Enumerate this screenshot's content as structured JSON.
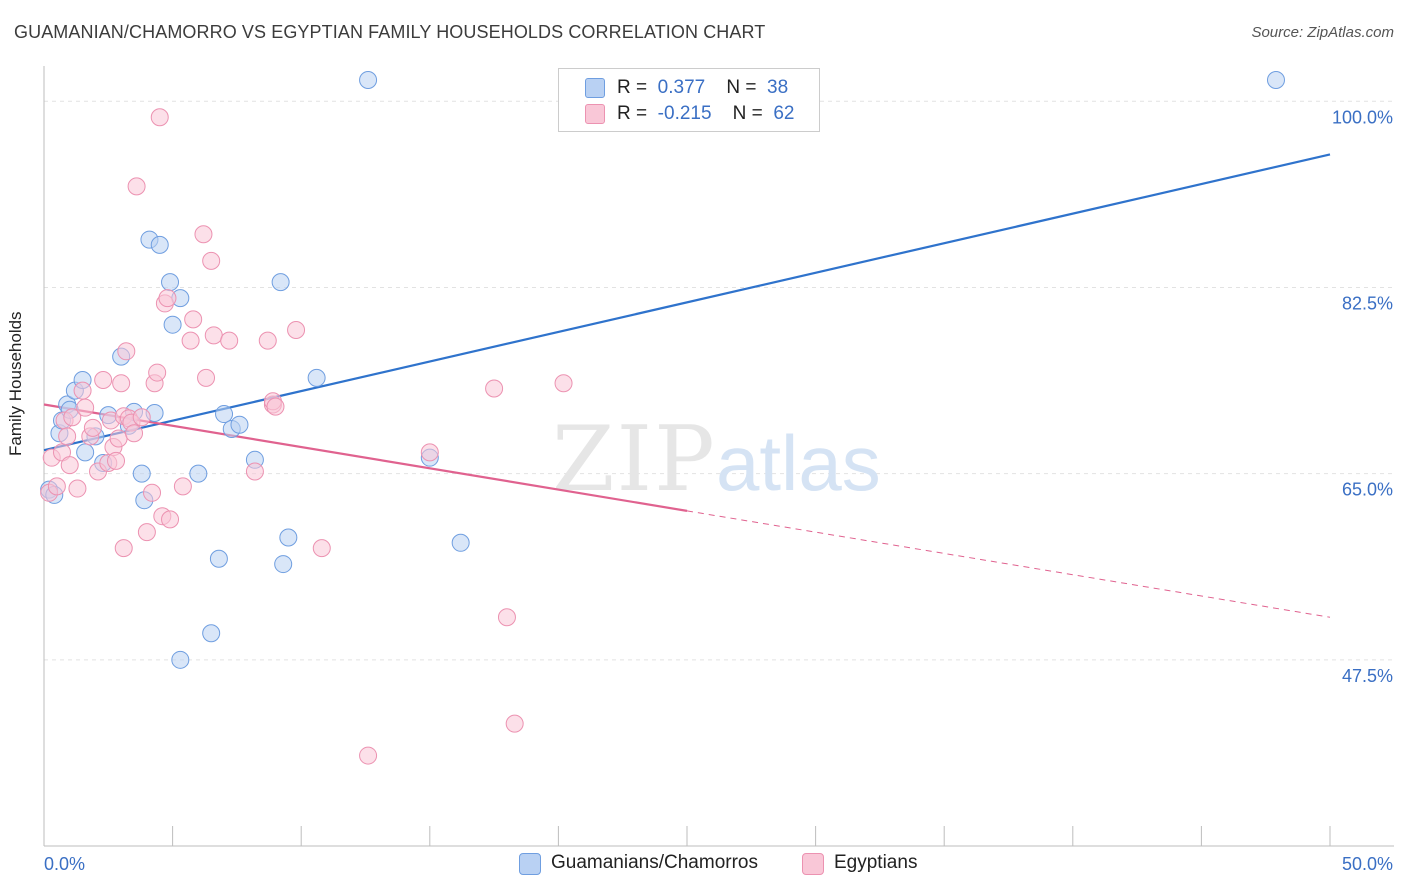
{
  "title": "GUAMANIAN/CHAMORRO VS EGYPTIAN FAMILY HOUSEHOLDS CORRELATION CHART",
  "source": "Source: ZipAtlas.com",
  "watermark": {
    "zip": "ZIP",
    "atlas": "atlas"
  },
  "legend": {
    "rows": [
      {
        "r_label": "R =",
        "r_value": "0.377",
        "n_label": "N =",
        "n_value": "38",
        "fill": "#b9d1f3",
        "stroke": "#6f9ee0"
      },
      {
        "r_label": "R =",
        "r_value": "-0.215",
        "n_label": "N =",
        "n_value": "62",
        "fill": "#f9c7d7",
        "stroke": "#ec92b1"
      }
    ]
  },
  "bottom_legend": [
    {
      "label": "Guamanians/Chamorros",
      "fill": "#b9d1f3",
      "stroke": "#6f9ee0"
    },
    {
      "label": "Egyptians",
      "fill": "#f9c7d7",
      "stroke": "#ec92b1"
    }
  ],
  "chart_data": {
    "type": "scatter",
    "title": "GUAMANIAN/CHAMORRO VS EGYPTIAN FAMILY HOUSEHOLDS CORRELATION CHART",
    "xlabel": "",
    "ylabel": "Family Households",
    "xlim": [
      0,
      50
    ],
    "ylim": [
      30,
      102
    ],
    "x_tick_labels": [
      {
        "value": 0,
        "label": "0.0%"
      },
      {
        "value": 50,
        "label": "50.0%"
      }
    ],
    "y_tick_labels": [
      {
        "value": 100,
        "label": "100.0%"
      },
      {
        "value": 82.5,
        "label": "82.5%"
      },
      {
        "value": 65,
        "label": "65.0%"
      },
      {
        "value": 47.5,
        "label": "47.5%"
      }
    ],
    "grid": true,
    "series": [
      {
        "name": "Guamanians/Chamorros",
        "color": "#6f9ee0",
        "fill": "#b9d1f3",
        "trend": {
          "x0": 0,
          "y0": 67.2,
          "x1": 50,
          "y1": 95.0,
          "color": "#2f73cc"
        },
        "points": [
          [
            0.2,
            63.5
          ],
          [
            0.4,
            63.0
          ],
          [
            0.6,
            68.8
          ],
          [
            0.7,
            70.0
          ],
          [
            0.9,
            71.5
          ],
          [
            1.0,
            71.0
          ],
          [
            1.2,
            72.8
          ],
          [
            1.5,
            73.8
          ],
          [
            1.6,
            67.0
          ],
          [
            2.0,
            68.5
          ],
          [
            2.3,
            66.0
          ],
          [
            2.5,
            70.5
          ],
          [
            3.0,
            76.0
          ],
          [
            3.3,
            69.5
          ],
          [
            3.5,
            70.8
          ],
          [
            3.8,
            65.0
          ],
          [
            3.9,
            62.5
          ],
          [
            4.1,
            87.0
          ],
          [
            4.3,
            70.7
          ],
          [
            4.5,
            86.5
          ],
          [
            4.9,
            83.0
          ],
          [
            5.0,
            79.0
          ],
          [
            5.3,
            81.5
          ],
          [
            5.3,
            47.5
          ],
          [
            6.0,
            65.0
          ],
          [
            6.5,
            50.0
          ],
          [
            6.8,
            57.0
          ],
          [
            7.0,
            70.6
          ],
          [
            7.3,
            69.2
          ],
          [
            7.6,
            69.6
          ],
          [
            8.2,
            66.3
          ],
          [
            9.2,
            83.0
          ],
          [
            9.3,
            56.5
          ],
          [
            9.5,
            59.0
          ],
          [
            10.6,
            74.0
          ],
          [
            12.6,
            102.0
          ],
          [
            15.0,
            66.5
          ],
          [
            16.2,
            58.5
          ],
          [
            47.9,
            102.0
          ]
        ]
      },
      {
        "name": "Egyptians",
        "color": "#ec92b1",
        "fill": "#f9c7d7",
        "trend": {
          "x0": 0,
          "y0": 71.5,
          "x1": 25,
          "y1": 61.5,
          "color": "#e0628f"
        },
        "trend_dashed": {
          "x0": 25,
          "y0": 61.5,
          "x1": 50,
          "y1": 51.5
        },
        "points": [
          [
            0.2,
            63.2
          ],
          [
            0.3,
            66.5
          ],
          [
            0.5,
            63.8
          ],
          [
            0.7,
            67.0
          ],
          [
            0.8,
            70.0
          ],
          [
            0.9,
            68.5
          ],
          [
            1.0,
            65.8
          ],
          [
            1.1,
            70.3
          ],
          [
            1.3,
            63.6
          ],
          [
            1.5,
            72.8
          ],
          [
            1.6,
            71.2
          ],
          [
            1.8,
            68.5
          ],
          [
            1.9,
            69.3
          ],
          [
            2.1,
            65.2
          ],
          [
            2.3,
            73.8
          ],
          [
            2.5,
            66.0
          ],
          [
            2.6,
            70.0
          ],
          [
            2.7,
            67.5
          ],
          [
            2.8,
            66.2
          ],
          [
            2.9,
            68.3
          ],
          [
            3.0,
            73.5
          ],
          [
            3.1,
            70.4
          ],
          [
            3.2,
            76.5
          ],
          [
            3.1,
            58.0
          ],
          [
            3.3,
            70.2
          ],
          [
            3.4,
            69.8
          ],
          [
            3.5,
            68.8
          ],
          [
            3.6,
            92.0
          ],
          [
            3.8,
            70.3
          ],
          [
            4.0,
            59.5
          ],
          [
            4.2,
            63.2
          ],
          [
            4.3,
            73.5
          ],
          [
            4.4,
            74.5
          ],
          [
            4.5,
            98.5
          ],
          [
            4.6,
            61.0
          ],
          [
            4.7,
            81.0
          ],
          [
            4.8,
            81.5
          ],
          [
            4.9,
            60.7
          ],
          [
            5.4,
            63.8
          ],
          [
            5.7,
            77.5
          ],
          [
            5.8,
            79.5
          ],
          [
            6.2,
            87.5
          ],
          [
            6.3,
            74.0
          ],
          [
            6.5,
            85.0
          ],
          [
            6.6,
            78.0
          ],
          [
            7.2,
            77.5
          ],
          [
            8.2,
            65.2
          ],
          [
            8.9,
            71.5
          ],
          [
            8.9,
            71.8
          ],
          [
            8.7,
            77.5
          ],
          [
            9.0,
            71.3
          ],
          [
            9.8,
            78.5
          ],
          [
            10.8,
            58.0
          ],
          [
            12.6,
            38.5
          ],
          [
            15.0,
            67.0
          ],
          [
            17.5,
            73.0
          ],
          [
            18.0,
            51.5
          ],
          [
            18.3,
            41.5
          ],
          [
            20.2,
            73.5
          ]
        ]
      }
    ]
  }
}
